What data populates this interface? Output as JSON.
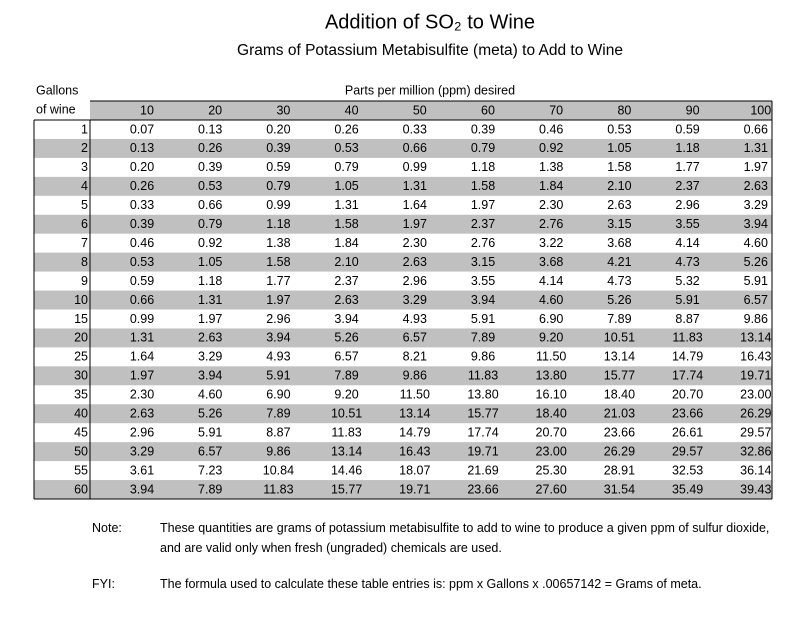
{
  "header": {
    "title": "Addition of SO₂ to Wine",
    "subtitle": "Grams of Potassium Metabisulfite (meta) to Add to Wine"
  },
  "table": {
    "row_header_line1": "Gallons",
    "row_header_line2": "of wine",
    "column_group": "Parts per million (ppm) desired",
    "columns": [
      "10",
      "20",
      "30",
      "40",
      "50",
      "60",
      "70",
      "80",
      "90",
      "100"
    ],
    "rows": [
      [
        "1",
        "0.07",
        "0.13",
        "0.20",
        "0.26",
        "0.33",
        "0.39",
        "0.46",
        "0.53",
        "0.59",
        "0.66"
      ],
      [
        "2",
        "0.13",
        "0.26",
        "0.39",
        "0.53",
        "0.66",
        "0.79",
        "0.92",
        "1.05",
        "1.18",
        "1.31"
      ],
      [
        "3",
        "0.20",
        "0.39",
        "0.59",
        "0.79",
        "0.99",
        "1.18",
        "1.38",
        "1.58",
        "1.77",
        "1.97"
      ],
      [
        "4",
        "0.26",
        "0.53",
        "0.79",
        "1.05",
        "1.31",
        "1.58",
        "1.84",
        "2.10",
        "2.37",
        "2.63"
      ],
      [
        "5",
        "0.33",
        "0.66",
        "0.99",
        "1.31",
        "1.64",
        "1.97",
        "2.30",
        "2.63",
        "2.96",
        "3.29"
      ],
      [
        "6",
        "0.39",
        "0.79",
        "1.18",
        "1.58",
        "1.97",
        "2.37",
        "2.76",
        "3.15",
        "3.55",
        "3.94"
      ],
      [
        "7",
        "0.46",
        "0.92",
        "1.38",
        "1.84",
        "2.30",
        "2.76",
        "3.22",
        "3.68",
        "4.14",
        "4.60"
      ],
      [
        "8",
        "0.53",
        "1.05",
        "1.58",
        "2.10",
        "2.63",
        "3.15",
        "3.68",
        "4.21",
        "4.73",
        "5.26"
      ],
      [
        "9",
        "0.59",
        "1.18",
        "1.77",
        "2.37",
        "2.96",
        "3.55",
        "4.14",
        "4.73",
        "5.32",
        "5.91"
      ],
      [
        "10",
        "0.66",
        "1.31",
        "1.97",
        "2.63",
        "3.29",
        "3.94",
        "4.60",
        "5.26",
        "5.91",
        "6.57"
      ],
      [
        "15",
        "0.99",
        "1.97",
        "2.96",
        "3.94",
        "4.93",
        "5.91",
        "6.90",
        "7.89",
        "8.87",
        "9.86"
      ],
      [
        "20",
        "1.31",
        "2.63",
        "3.94",
        "5.26",
        "6.57",
        "7.89",
        "9.20",
        "10.51",
        "11.83",
        "13.14"
      ],
      [
        "25",
        "1.64",
        "3.29",
        "4.93",
        "6.57",
        "8.21",
        "9.86",
        "11.50",
        "13.14",
        "14.79",
        "16.43"
      ],
      [
        "30",
        "1.97",
        "3.94",
        "5.91",
        "7.89",
        "9.86",
        "11.83",
        "13.80",
        "15.77",
        "17.74",
        "19.71"
      ],
      [
        "35",
        "2.30",
        "4.60",
        "6.90",
        "9.20",
        "11.50",
        "13.80",
        "16.10",
        "18.40",
        "20.70",
        "23.00"
      ],
      [
        "40",
        "2.63",
        "5.26",
        "7.89",
        "10.51",
        "13.14",
        "15.77",
        "18.40",
        "21.03",
        "23.66",
        "26.29"
      ],
      [
        "45",
        "2.96",
        "5.91",
        "8.87",
        "11.83",
        "14.79",
        "17.74",
        "20.70",
        "23.66",
        "26.61",
        "29.57"
      ],
      [
        "50",
        "3.29",
        "6.57",
        "9.86",
        "13.14",
        "16.43",
        "19.71",
        "23.00",
        "26.29",
        "29.57",
        "32.86"
      ],
      [
        "55",
        "3.61",
        "7.23",
        "10.84",
        "14.46",
        "18.07",
        "21.69",
        "25.30",
        "28.91",
        "32.53",
        "36.14"
      ],
      [
        "60",
        "3.94",
        "7.89",
        "11.83",
        "15.77",
        "19.71",
        "23.66",
        "27.60",
        "31.54",
        "35.49",
        "39.43"
      ]
    ]
  },
  "note": {
    "label": "Note:",
    "text": "These quantities are grams of potassium metabisulfite to add to wine to produce a given ppm of sulfur dioxide, and are valid only when fresh (ungraded) chemicals are used."
  },
  "fyi": {
    "label": "FYI:",
    "text": "The formula used to calculate these table entries is:  ppm x Gallons x .00657142 = Grams of meta."
  }
}
